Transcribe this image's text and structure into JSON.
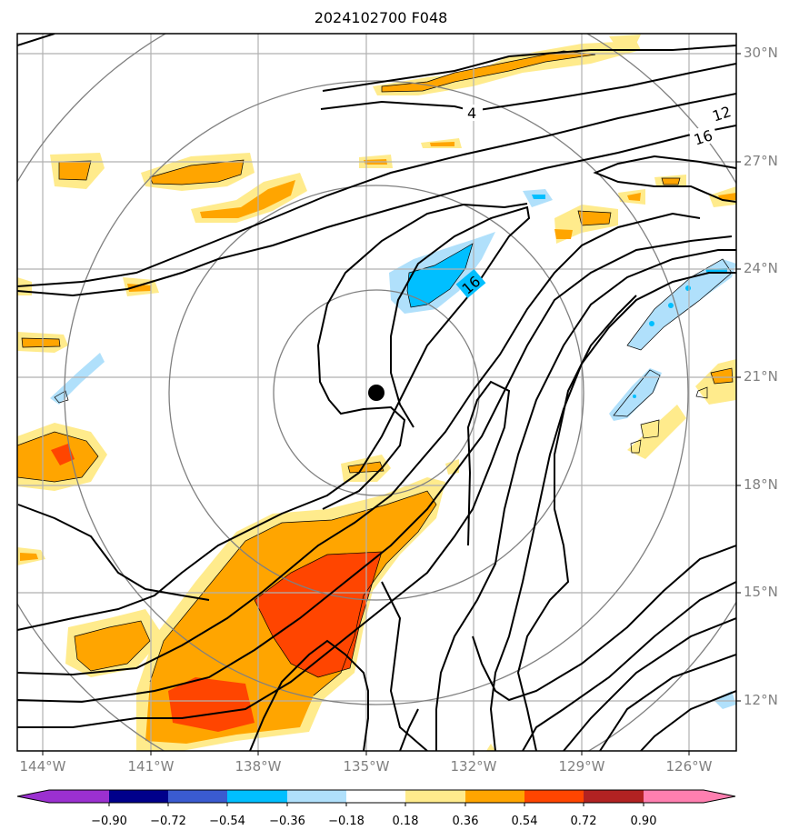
{
  "title": "2024102700 F048",
  "map": {
    "lon_range": [
      -145.0,
      -125.0
    ],
    "lat_range": [
      10.5,
      30.5
    ],
    "lat_labels": [
      "30°N",
      "27°N",
      "24°N",
      "21°N",
      "18°N",
      "15°N",
      "12°N"
    ],
    "lon_labels": [
      "144°W",
      "141°W",
      "138°W",
      "135°W",
      "132°W",
      "129°W",
      "126°W"
    ],
    "storm_center_marker": "filled-black-circle",
    "contour_labels": [
      "4",
      "12",
      "16",
      "16"
    ]
  },
  "colorbar": {
    "ticks": [
      "−0.90",
      "−0.72",
      "−0.54",
      "−0.36",
      "−0.18",
      "0.18",
      "0.36",
      "0.54",
      "0.72",
      "0.90"
    ],
    "colors": [
      "#9b30d0",
      "#00008b",
      "#3a5bd0",
      "#00bfff",
      "#b0e0fb",
      "#ffffff",
      "#ffeb8c",
      "#ffa500",
      "#ff4500",
      "#b22222",
      "#ff7fb0"
    ]
  }
}
